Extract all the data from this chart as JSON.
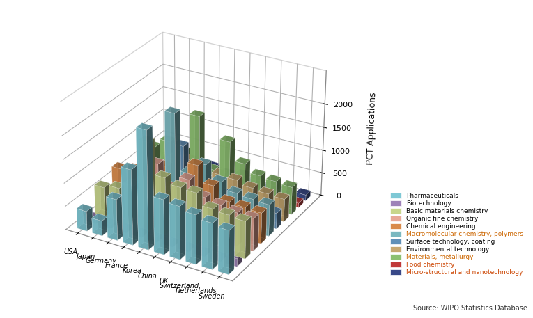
{
  "countries": [
    "USA",
    "Japan",
    "Germany",
    "France",
    "Korea",
    "China",
    "UK",
    "Switzerland",
    "Netherlands",
    "Sweden"
  ],
  "subdisciplines": [
    "Pharmaceuticals",
    "Biotechnology",
    "Basic materials chemistry",
    "Organic fine chemistry",
    "Chemical engineering",
    "Macromolecular chemistry, polymers",
    "Surface technology, coating",
    "Environmental technology",
    "Materials, metallurgy",
    "Food chemistry",
    "Micro-structural and nanotechnology"
  ],
  "colors": [
    "#7EC8D5",
    "#9E82B8",
    "#C8D68C",
    "#E8A898",
    "#D98A4A",
    "#7AB8C0",
    "#6090B8",
    "#C8A870",
    "#8CC070",
    "#C03838",
    "#384888"
  ],
  "data": {
    "USA": [
      430,
      100,
      640,
      420,
      750,
      480,
      180,
      330,
      660,
      60,
      80
    ],
    "Japan": [
      320,
      80,
      720,
      550,
      820,
      700,
      200,
      310,
      870,
      50,
      90
    ],
    "Germany": [
      880,
      160,
      870,
      770,
      1000,
      850,
      350,
      700,
      740,
      100,
      120
    ],
    "France": [
      1600,
      280,
      1880,
      1280,
      1080,
      2070,
      1230,
      780,
      1600,
      150,
      180
    ],
    "Korea": [
      2500,
      130,
      1230,
      860,
      760,
      870,
      430,
      440,
      510,
      80,
      110
    ],
    "China": [
      1170,
      190,
      1120,
      1130,
      1290,
      1160,
      570,
      640,
      1220,
      130,
      180
    ],
    "UK": [
      1130,
      210,
      1100,
      850,
      950,
      880,
      440,
      620,
      830,
      130,
      160
    ],
    "Switzerland": [
      1050,
      200,
      860,
      780,
      700,
      730,
      370,
      540,
      660,
      110,
      140
    ],
    "Netherlands": [
      980,
      180,
      830,
      720,
      680,
      700,
      350,
      510,
      630,
      100,
      130
    ],
    "Sweden": [
      930,
      170,
      800,
      700,
      660,
      680,
      340,
      490,
      600,
      95,
      125
    ]
  },
  "zlabel": "PCT Applications",
  "source": "Source: WIPO Statistics Database",
  "zlim": [
    0,
    2700
  ],
  "zticks": [
    0,
    500,
    1000,
    1500,
    2000
  ],
  "background_color": "#FFFFFF",
  "legend_text_colors": [
    "#000000",
    "#000000",
    "#000000",
    "#000000",
    "#000000",
    "#CC6600",
    "#000000",
    "#000000",
    "#CC6600",
    "#CC4400",
    "#CC4400"
  ],
  "elev": 28,
  "azim": -60
}
